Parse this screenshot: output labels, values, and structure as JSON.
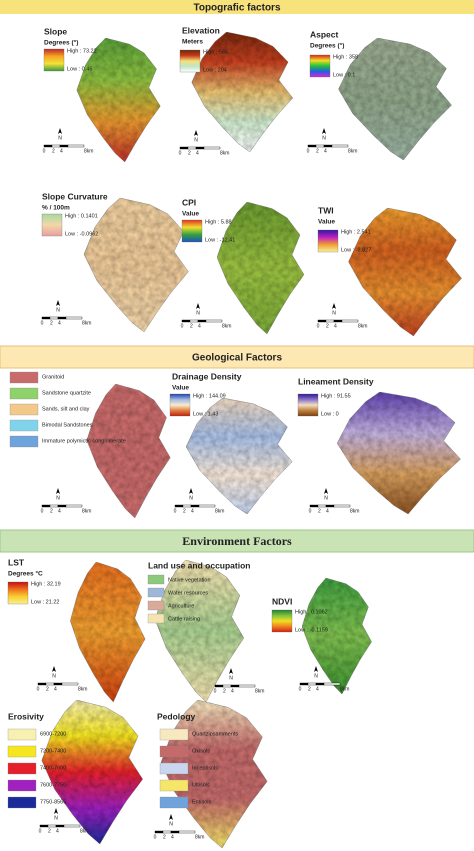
{
  "sections": [
    {
      "title": "Topografic factors",
      "panels": [
        {
          "title": "Slope",
          "unit": "Degrees (°)",
          "high": "High : 73.22",
          "low": "Low : 0.46"
        },
        {
          "title": "Elevation",
          "unit": "Meters",
          "high": "High : 565",
          "low": "Low : 204"
        },
        {
          "title": "Aspect",
          "unit": "Degrees (°)",
          "high": "High : 358",
          "low": "Low : 0.1"
        },
        {
          "title": "Slope Curvature",
          "unit": "% / 100m",
          "high": "High : 0.1401",
          "low": "Low : -0.0962"
        },
        {
          "title": "CPI",
          "unit": "Value",
          "high": "High : 5.88",
          "low": "Low : -12.41"
        },
        {
          "title": "TWI",
          "unit": "Value",
          "high": "High : 2.541",
          "low": "Low : -8.827"
        }
      ]
    },
    {
      "title": "Geological Factors",
      "panels": [
        {
          "legend": [
            {
              "label": "Granitoid",
              "color": "#c96b6b"
            },
            {
              "label": "Sandstone quartzite",
              "color": "#8fd16a"
            },
            {
              "label": "Sands, silt and clay",
              "color": "#f2c98a"
            },
            {
              "label": "Bimodal Sandstones",
              "color": "#7fd3ea"
            },
            {
              "label": "Immature polymictic conglomerate",
              "color": "#6fa3dc"
            }
          ]
        },
        {
          "title": "Drainage Density",
          "unit": "Value",
          "high": "High : 144.09",
          "low": "Low : 1.43"
        },
        {
          "title": "Lineament Density",
          "high": "High : 91.55",
          "low": "Low : 0"
        }
      ]
    },
    {
      "title": "Environment Factors",
      "panels": [
        {
          "title": "LST",
          "unit": "Degrees °C",
          "high": "High : 32.19",
          "low": "Low : 21.22"
        },
        {
          "title": "Land use and occupation",
          "legend": [
            {
              "label": "Native vegetation",
              "color": "#8cc97a"
            },
            {
              "label": "Water resources",
              "color": "#9db8d6"
            },
            {
              "label": "Agriculture",
              "color": "#d9a99a"
            },
            {
              "label": "Cattle raising",
              "color": "#f6e3b2"
            }
          ]
        },
        {
          "title": "NDVI",
          "high": "High : 0.1062",
          "low": "Low : -0.1159"
        },
        {
          "title": "Erosivity",
          "legend": [
            {
              "label": "6900-7200",
              "color": "#f7f0b0"
            },
            {
              "label": "7200-7400",
              "color": "#f5e620"
            },
            {
              "label": "7400-7600",
              "color": "#e5202a"
            },
            {
              "label": "7600-7750",
              "color": "#a020c0"
            },
            {
              "label": "7750-8565",
              "color": "#1a2a9a"
            }
          ]
        },
        {
          "title": "Pedology",
          "legend": [
            {
              "label": "Quartzipsamments",
              "color": "#f7e8c0"
            },
            {
              "label": "Oxisols",
              "color": "#c46a6a"
            },
            {
              "label": "Inceptisols",
              "color": "#c9d6f0"
            },
            {
              "label": "Ultisols",
              "color": "#f5e66a"
            },
            {
              "label": "Entisols",
              "color": "#6fa3dc"
            }
          ]
        }
      ]
    }
  ],
  "scale_bar": {
    "labels": [
      "0",
      "2",
      "4",
      "8km"
    ],
    "north": "N"
  }
}
